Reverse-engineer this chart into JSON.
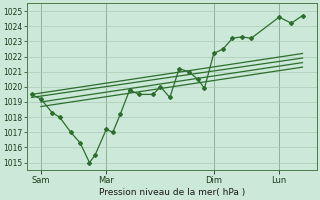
{
  "title": "Pression niveau de la mer( hPa )",
  "bg_color": "#cce8d8",
  "grid_color": "#aaccb8",
  "line_color": "#2d6e2d",
  "ylim": [
    1014.5,
    1025.5
  ],
  "yticks": [
    1015,
    1016,
    1017,
    1018,
    1019,
    1020,
    1021,
    1022,
    1023,
    1024,
    1025
  ],
  "xtick_labels": [
    "Sam",
    "Mar",
    "Dim",
    "Lun"
  ],
  "xtick_positions": [
    10,
    80,
    195,
    265
  ],
  "vline_positions": [
    10,
    80,
    195,
    265
  ],
  "series_main_x": [
    0,
    10,
    22,
    30,
    42,
    52,
    62,
    68,
    80,
    87,
    95,
    105,
    115,
    130,
    138,
    148,
    158,
    168,
    178,
    185,
    195,
    205,
    215,
    225,
    235,
    265,
    278,
    290
  ],
  "series_main_y": [
    1019.5,
    1019.2,
    1018.3,
    1018.0,
    1017.0,
    1016.3,
    1015.0,
    1015.5,
    1017.2,
    1017.0,
    1018.2,
    1019.8,
    1019.5,
    1019.5,
    1020.0,
    1019.3,
    1021.2,
    1021.0,
    1020.5,
    1019.9,
    1022.2,
    1022.5,
    1023.2,
    1023.3,
    1023.2,
    1024.6,
    1024.2,
    1024.7
  ],
  "series_trend1_x": [
    0,
    290
  ],
  "series_trend1_y": [
    1019.5,
    1022.2
  ],
  "series_trend2_x": [
    0,
    290
  ],
  "series_trend2_y": [
    1019.3,
    1021.9
  ],
  "series_trend3_x": [
    10,
    290
  ],
  "series_trend3_y": [
    1019.0,
    1021.6
  ],
  "series_trend4_x": [
    10,
    290
  ],
  "series_trend4_y": [
    1018.7,
    1021.3
  ],
  "xlim": [
    -5,
    305
  ]
}
